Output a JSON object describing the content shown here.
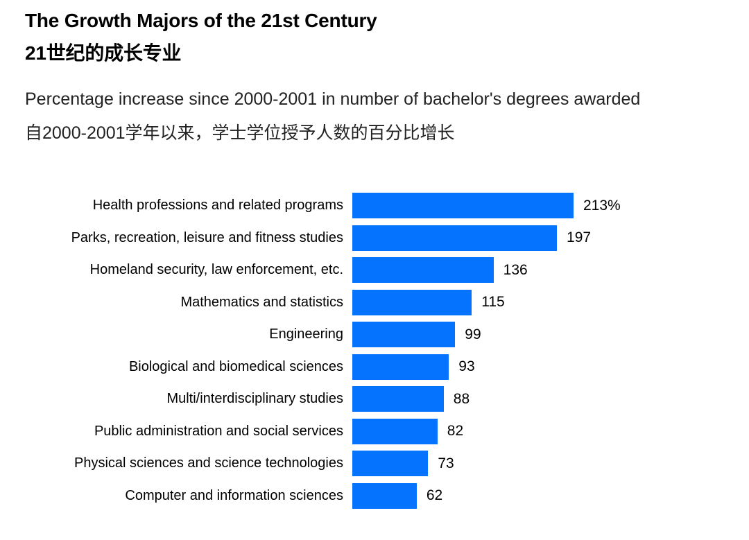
{
  "header": {
    "title_en": "The Growth Majors of the 21st Century",
    "title_zh": "21世纪的成长专业",
    "subtitle_en": "Percentage increase since 2000-2001 in number of bachelor's degrees awarded",
    "subtitle_zh": "自2000-2001学年以来，学士学位授予人数的百分比增长"
  },
  "chart_data": {
    "type": "bar",
    "orientation": "horizontal",
    "title": "The Growth Majors of the 21st Century / 21世纪的成长专业",
    "xlabel": "Percentage increase since 2000-2001 in number of bachelor's degrees awarded",
    "ylabel": "",
    "categories": [
      "Health professions and related programs",
      "Parks, recreation, leisure and fitness studies",
      "Homeland security, law enforcement, etc.",
      "Mathematics and statistics",
      "Engineering",
      "Biological and biomedical sciences",
      "Multi/interdisciplinary studies",
      "Public administration and social services",
      "Physical sciences and science technologies",
      "Computer and information sciences"
    ],
    "values": [
      213,
      197,
      136,
      115,
      99,
      93,
      88,
      82,
      73,
      62
    ],
    "value_labels": [
      "213%",
      "197",
      "136",
      "115",
      "99",
      "93",
      "88",
      "82",
      "73",
      "62"
    ],
    "bar_color": "#0673ff",
    "xlim": [
      0,
      213
    ],
    "grid": false,
    "legend": false
  }
}
